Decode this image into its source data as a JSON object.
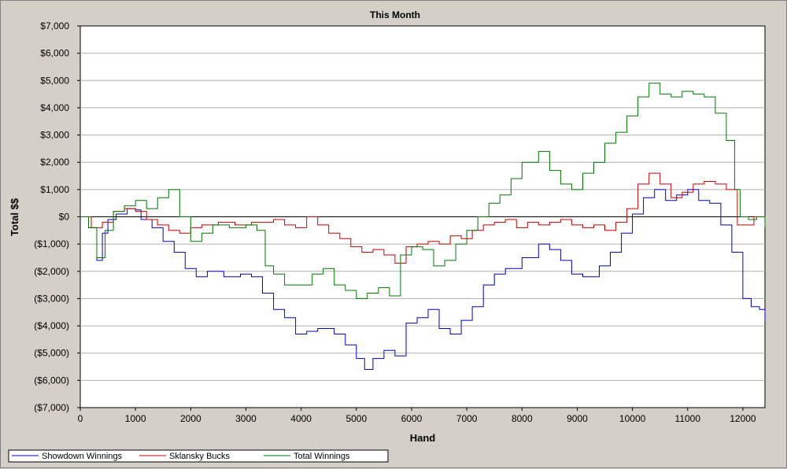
{
  "chart_data": {
    "type": "line",
    "title": "This Month",
    "xlabel": "Hand",
    "ylabel": "Total $$",
    "xlim": [
      0,
      12400
    ],
    "ylim": [
      -7000,
      7000
    ],
    "x_ticks": [
      0,
      1000,
      2000,
      3000,
      4000,
      5000,
      6000,
      7000,
      8000,
      9000,
      10000,
      11000,
      12000
    ],
    "x_tick_labels": [
      "0",
      "1000",
      "2000",
      "3000",
      "4000",
      "5000",
      "6000",
      "7000",
      "8000",
      "9000",
      "10000",
      "11000",
      "12000"
    ],
    "y_ticks": [
      7000,
      6000,
      5000,
      4000,
      3000,
      2000,
      1000,
      0,
      -1000,
      -2000,
      -3000,
      -4000,
      -5000,
      -6000,
      -7000
    ],
    "y_tick_labels": [
      "$7,000",
      "$6,000",
      "$5,000",
      "$4,000",
      "$3,000",
      "$2,000",
      "$1,000",
      "$0",
      "($1,000)",
      "($2,000)",
      "($3,000)",
      "($4,000)",
      "($5,000)",
      "($6,000)",
      "($7,000)"
    ],
    "grid": true,
    "legend_position": "bottom-left",
    "series": [
      {
        "name": "Showdown Winnings",
        "color": "#0000cc",
        "points": [
          [
            0,
            0
          ],
          [
            150,
            -400
          ],
          [
            300,
            -1600
          ],
          [
            400,
            -600
          ],
          [
            500,
            -100
          ],
          [
            650,
            100
          ],
          [
            750,
            100
          ],
          [
            850,
            300
          ],
          [
            1000,
            250
          ],
          [
            1100,
            -100
          ],
          [
            1300,
            -400
          ],
          [
            1500,
            -900
          ],
          [
            1700,
            -1300
          ],
          [
            1900,
            -1900
          ],
          [
            2100,
            -2200
          ],
          [
            2300,
            -2000
          ],
          [
            2600,
            -2200
          ],
          [
            2900,
            -2100
          ],
          [
            3100,
            -2200
          ],
          [
            3300,
            -2800
          ],
          [
            3500,
            -3400
          ],
          [
            3700,
            -3700
          ],
          [
            3900,
            -4300
          ],
          [
            4100,
            -4200
          ],
          [
            4300,
            -4100
          ],
          [
            4600,
            -4300
          ],
          [
            4800,
            -4700
          ],
          [
            5000,
            -5200
          ],
          [
            5150,
            -5600
          ],
          [
            5300,
            -5200
          ],
          [
            5500,
            -4900
          ],
          [
            5700,
            -5100
          ],
          [
            5900,
            -3900
          ],
          [
            6100,
            -3700
          ],
          [
            6300,
            -3400
          ],
          [
            6500,
            -4100
          ],
          [
            6700,
            -4300
          ],
          [
            6900,
            -3800
          ],
          [
            7100,
            -3300
          ],
          [
            7300,
            -2500
          ],
          [
            7500,
            -2100
          ],
          [
            7700,
            -1900
          ],
          [
            8000,
            -1500
          ],
          [
            8300,
            -1000
          ],
          [
            8500,
            -1200
          ],
          [
            8700,
            -1600
          ],
          [
            8900,
            -2100
          ],
          [
            9100,
            -2200
          ],
          [
            9400,
            -1800
          ],
          [
            9600,
            -1300
          ],
          [
            9800,
            -600
          ],
          [
            10000,
            100
          ],
          [
            10200,
            700
          ],
          [
            10400,
            1000
          ],
          [
            10600,
            600
          ],
          [
            10800,
            800
          ],
          [
            11000,
            1000
          ],
          [
            11200,
            600
          ],
          [
            11400,
            500
          ],
          [
            11600,
            -300
          ],
          [
            11800,
            -1300
          ],
          [
            12000,
            -3000
          ],
          [
            12150,
            -3300
          ],
          [
            12300,
            -3400
          ],
          [
            12400,
            -3800
          ]
        ]
      },
      {
        "name": "Sklansky Bucks",
        "color": "#cc0000",
        "points": [
          [
            0,
            0
          ],
          [
            200,
            -400
          ],
          [
            400,
            -200
          ],
          [
            600,
            200
          ],
          [
            800,
            300
          ],
          [
            1000,
            200
          ],
          [
            1200,
            -100
          ],
          [
            1400,
            -300
          ],
          [
            1600,
            -500
          ],
          [
            1800,
            -600
          ],
          [
            2000,
            -400
          ],
          [
            2200,
            -300
          ],
          [
            2500,
            -200
          ],
          [
            2800,
            -300
          ],
          [
            3100,
            -200
          ],
          [
            3300,
            -200
          ],
          [
            3500,
            -100
          ],
          [
            3700,
            -300
          ],
          [
            3900,
            -400
          ],
          [
            4100,
            0
          ],
          [
            4300,
            -300
          ],
          [
            4500,
            -600
          ],
          [
            4700,
            -800
          ],
          [
            4900,
            -1100
          ],
          [
            5100,
            -1300
          ],
          [
            5300,
            -1200
          ],
          [
            5500,
            -1400
          ],
          [
            5700,
            -1700
          ],
          [
            5900,
            -1100
          ],
          [
            6100,
            -1000
          ],
          [
            6300,
            -900
          ],
          [
            6500,
            -1000
          ],
          [
            6700,
            -700
          ],
          [
            6900,
            -800
          ],
          [
            7100,
            -500
          ],
          [
            7300,
            -300
          ],
          [
            7500,
            -200
          ],
          [
            7700,
            -100
          ],
          [
            7900,
            -400
          ],
          [
            8100,
            -200
          ],
          [
            8300,
            -300
          ],
          [
            8500,
            -200
          ],
          [
            8700,
            -100
          ],
          [
            8900,
            -300
          ],
          [
            9100,
            -400
          ],
          [
            9300,
            -300
          ],
          [
            9500,
            -500
          ],
          [
            9700,
            -200
          ],
          [
            9900,
            300
          ],
          [
            10100,
            1200
          ],
          [
            10300,
            1600
          ],
          [
            10500,
            1200
          ],
          [
            10700,
            700
          ],
          [
            10900,
            900
          ],
          [
            11100,
            1200
          ],
          [
            11300,
            1300
          ],
          [
            11500,
            1200
          ],
          [
            11700,
            1000
          ],
          [
            11900,
            -300
          ],
          [
            12050,
            -300
          ],
          [
            12200,
            0
          ],
          [
            12400,
            -300
          ]
        ]
      },
      {
        "name": "Total Winnings",
        "color": "#007700",
        "points": [
          [
            0,
            0
          ],
          [
            150,
            -400
          ],
          [
            300,
            -1500
          ],
          [
            450,
            -500
          ],
          [
            600,
            200
          ],
          [
            800,
            400
          ],
          [
            1000,
            600
          ],
          [
            1200,
            300
          ],
          [
            1400,
            700
          ],
          [
            1600,
            1000
          ],
          [
            1800,
            0
          ],
          [
            2000,
            -900
          ],
          [
            2200,
            -600
          ],
          [
            2400,
            -300
          ],
          [
            2700,
            -400
          ],
          [
            3000,
            -300
          ],
          [
            3200,
            -500
          ],
          [
            3350,
            -1800
          ],
          [
            3500,
            -2100
          ],
          [
            3700,
            -2500
          ],
          [
            3900,
            -2500
          ],
          [
            4200,
            -2100
          ],
          [
            4400,
            -1900
          ],
          [
            4600,
            -2500
          ],
          [
            4800,
            -2700
          ],
          [
            5000,
            -3000
          ],
          [
            5200,
            -2800
          ],
          [
            5400,
            -2600
          ],
          [
            5600,
            -2900
          ],
          [
            5800,
            -1400
          ],
          [
            6000,
            -1100
          ],
          [
            6200,
            -1200
          ],
          [
            6400,
            -1800
          ],
          [
            6600,
            -1600
          ],
          [
            6800,
            -1000
          ],
          [
            7000,
            -500
          ],
          [
            7200,
            0
          ],
          [
            7400,
            500
          ],
          [
            7600,
            800
          ],
          [
            7800,
            1400
          ],
          [
            8000,
            2000
          ],
          [
            8300,
            2400
          ],
          [
            8500,
            1700
          ],
          [
            8700,
            1200
          ],
          [
            8900,
            1000
          ],
          [
            9100,
            1600
          ],
          [
            9300,
            2000
          ],
          [
            9500,
            2700
          ],
          [
            9700,
            3100
          ],
          [
            9900,
            3700
          ],
          [
            10100,
            4400
          ],
          [
            10300,
            4900
          ],
          [
            10500,
            4500
          ],
          [
            10700,
            4400
          ],
          [
            10900,
            4600
          ],
          [
            11100,
            4500
          ],
          [
            11300,
            4400
          ],
          [
            11500,
            3800
          ],
          [
            11700,
            2800
          ],
          [
            11850,
            1000
          ],
          [
            11950,
            0
          ],
          [
            12100,
            -100
          ],
          [
            12250,
            0
          ],
          [
            12400,
            -400
          ]
        ]
      }
    ]
  }
}
